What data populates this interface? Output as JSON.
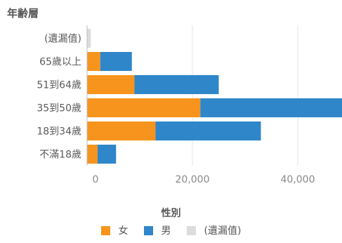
{
  "chart_data": {
    "type": "bar",
    "orientation": "horizontal",
    "stacked": true,
    "title": "年齢層",
    "categories": [
      "(遺漏值)",
      "65歲以上",
      "51到64歲",
      "35到50歲",
      "18到34歲",
      "不滿18歲"
    ],
    "series": [
      {
        "name": "女",
        "color": "#f7941d",
        "values": [
          0,
          2500,
          9000,
          21500,
          13000,
          2000
        ]
      },
      {
        "name": "男",
        "color": "#2f86c9",
        "values": [
          0,
          6000,
          16000,
          27000,
          20000,
          3500
        ]
      },
      {
        "name": "(遺漏值)",
        "color": "#dcdcdc",
        "values": [
          700,
          0,
          0,
          0,
          0,
          0
        ]
      }
    ],
    "x_ticks": [
      "0",
      "20,000",
      "40,000"
    ],
    "x_tick_values": [
      0,
      20000,
      40000
    ],
    "xlim": [
      0,
      48000
    ],
    "grid": true,
    "legend_title": "性別",
    "legend_position": "bottom"
  }
}
